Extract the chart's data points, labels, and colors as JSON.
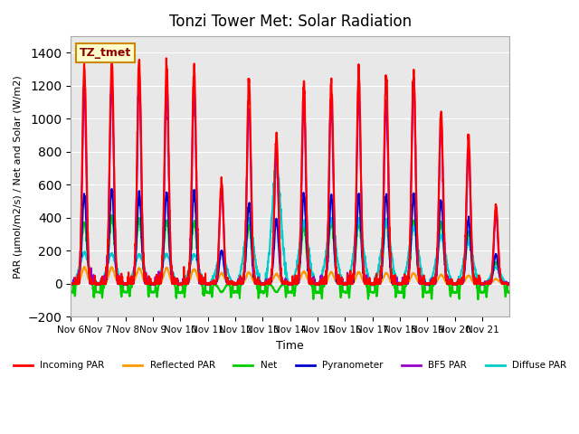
{
  "title": "Tonzi Tower Met: Solar Radiation",
  "ylabel": "PAR (μmol/m2/s) / Net and Solar (W/m2)",
  "xlabel": "Time",
  "ylim": [
    -200,
    1500
  ],
  "yticks": [
    -200,
    0,
    200,
    400,
    600,
    800,
    1000,
    1200,
    1400
  ],
  "background_color": "#e8e8e8",
  "annotation_text": "TZ_tmet",
  "annotation_bg": "#ffffcc",
  "annotation_border": "#cc8800",
  "series": {
    "incoming_par": {
      "label": "Incoming PAR",
      "color": "#ff0000",
      "linewidth": 1.5
    },
    "reflected_par": {
      "label": "Reflected PAR",
      "color": "#ff9900",
      "linewidth": 1.5
    },
    "net": {
      "label": "Net",
      "color": "#00cc00",
      "linewidth": 1.5
    },
    "pyranometer": {
      "label": "Pyranometer",
      "color": "#0000cc",
      "linewidth": 1.5
    },
    "bf5_par": {
      "label": "BF5 PAR",
      "color": "#9900cc",
      "linewidth": 1.5
    },
    "diffuse_par": {
      "label": "Diffuse PAR",
      "color": "#00cccc",
      "linewidth": 1.5
    }
  },
  "x_tick_labels": [
    "Nov 6",
    "Nov 7",
    "Nov 8",
    "Nov 9",
    "Nov 10",
    "Nov 11",
    "Nov 12",
    "Nov 13",
    "Nov 14",
    "Nov 15",
    "Nov 16",
    "Nov 17",
    "Nov 18",
    "Nov 19",
    "Nov 20",
    "Nov 21"
  ],
  "x_tick_positions": [
    0,
    1,
    2,
    3,
    4,
    5,
    6,
    7,
    8,
    9,
    10,
    11,
    12,
    13,
    14,
    15
  ],
  "num_days": 16,
  "day_peaks": {
    "incoming_par": [
      1320,
      1360,
      1340,
      1330,
      1310,
      620,
      1240,
      900,
      1230,
      1240,
      1270,
      1280,
      1260,
      1040,
      900,
      480
    ],
    "bf5_par": [
      1180,
      1220,
      1200,
      1190,
      1175,
      580,
      1080,
      800,
      1100,
      1120,
      1140,
      1110,
      1230,
      960,
      800,
      420
    ],
    "pyranometer": [
      540,
      570,
      545,
      550,
      560,
      200,
      480,
      390,
      530,
      530,
      530,
      540,
      535,
      500,
      390,
      180
    ],
    "diffuse_par": [
      185,
      180,
      175,
      175,
      175,
      190,
      390,
      700,
      370,
      390,
      380,
      370,
      340,
      290,
      250,
      100
    ],
    "reflected_par": [
      100,
      100,
      95,
      95,
      90,
      65,
      70,
      60,
      75,
      70,
      70,
      65,
      65,
      55,
      50,
      30
    ],
    "net": [
      375,
      395,
      390,
      380,
      370,
      -50,
      355,
      -50,
      350,
      380,
      375,
      380,
      380,
      360,
      310,
      130
    ]
  }
}
